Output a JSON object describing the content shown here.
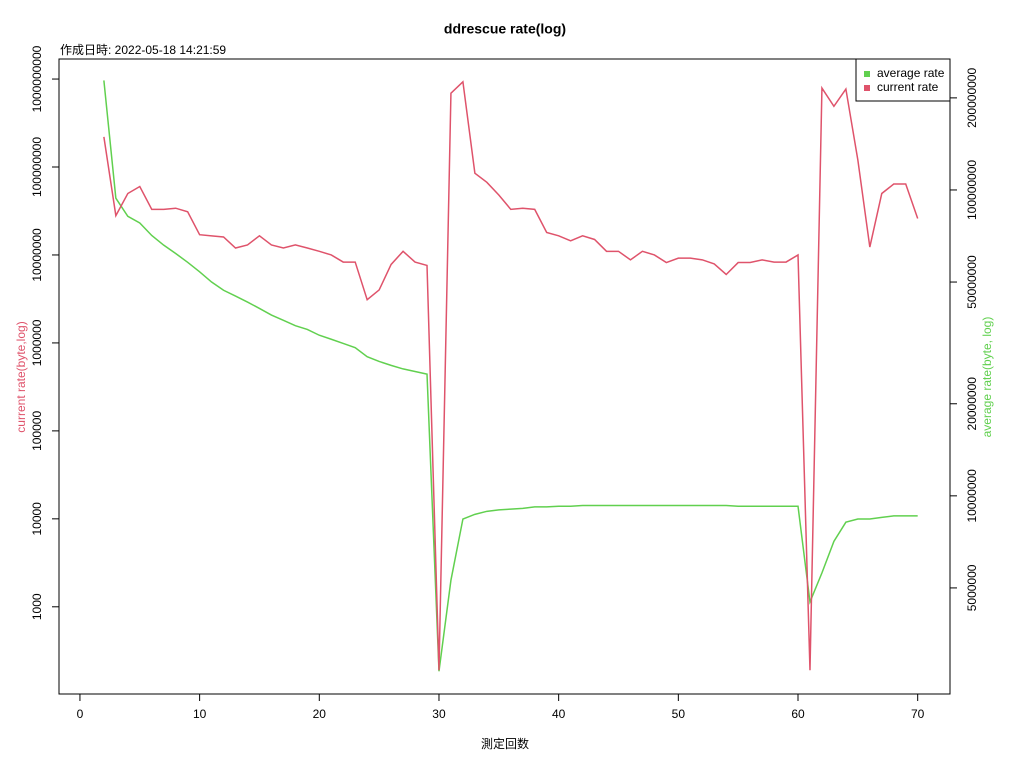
{
  "chart_data": {
    "type": "line",
    "title": "ddrescue rate(log)",
    "subtitle": "作成日時: 2022-05-18 14:21:59",
    "xlabel": "測定回数",
    "ylabel": "current rate(byte,log)",
    "y2label": "average rate(byte, log)",
    "x": [
      2,
      3,
      4,
      5,
      6,
      7,
      8,
      9,
      10,
      11,
      12,
      13,
      14,
      15,
      16,
      17,
      18,
      19,
      20,
      21,
      22,
      23,
      24,
      25,
      26,
      27,
      28,
      29,
      30,
      31,
      32,
      33,
      34,
      35,
      36,
      37,
      38,
      39,
      40,
      41,
      42,
      43,
      44,
      45,
      46,
      47,
      48,
      49,
      50,
      51,
      52,
      53,
      54,
      55,
      56,
      57,
      58,
      59,
      60,
      61,
      62,
      63,
      64,
      65,
      66,
      67,
      68,
      69,
      70
    ],
    "series": [
      {
        "name": "average rate",
        "color": "#61D04F",
        "axis": "y2",
        "values": [
          228000000,
          94000000,
          82000000,
          78000000,
          71000000,
          66000000,
          62000000,
          58000000,
          54000000,
          50000000,
          47000000,
          45000000,
          43000000,
          41000000,
          39000000,
          37500000,
          36000000,
          35000000,
          33500000,
          32500000,
          31500000,
          30500000,
          28500000,
          27500000,
          26700000,
          26000000,
          25500000,
          25000000,
          2670000,
          5300000,
          8400000,
          8700000,
          8900000,
          9000000,
          9050000,
          9100000,
          9200000,
          9200000,
          9250000,
          9250000,
          9300000,
          9300000,
          9300000,
          9300000,
          9300000,
          9300000,
          9300000,
          9300000,
          9300000,
          9300000,
          9300000,
          9300000,
          9300000,
          9250000,
          9250000,
          9250000,
          9250000,
          9250000,
          9250000,
          4500000,
          5600000,
          7100000,
          8200000,
          8400000,
          8400000,
          8500000,
          8600000,
          8600000,
          8600000
        ]
      },
      {
        "name": "current rate",
        "color": "#DF536B",
        "values": [
          220000000,
          28000000,
          50000000,
          60000000,
          33000000,
          33000000,
          34000000,
          31000000,
          17000000,
          16500000,
          16000000,
          12000000,
          13000000,
          16500000,
          13000000,
          12000000,
          13000000,
          12000000,
          11000000,
          10000000,
          8300000,
          8300000,
          3100000,
          4000000,
          7800000,
          11000000,
          8300000,
          7600000,
          190,
          690000000,
          930000000,
          85000000,
          67000000,
          48000000,
          33000000,
          34000000,
          33000000,
          18000000,
          16500000,
          14500000,
          16500000,
          15000000,
          11000000,
          11000000,
          8800000,
          11000000,
          10000000,
          8200000,
          9200000,
          9200000,
          8800000,
          7900000,
          6000000,
          8200000,
          8200000,
          8800000,
          8300000,
          8300000,
          10000000,
          190,
          790000000,
          490000000,
          770000000,
          120000000,
          12300000,
          50000000,
          64000000,
          64000000,
          26000000
        ]
      }
    ],
    "xlim": [
      -1.75,
      72.7
    ],
    "xticks": [
      0,
      10,
      20,
      30,
      40,
      50,
      60,
      70
    ],
    "ylog": true,
    "ylim": [
      102,
      1690000000
    ],
    "yticks": [
      1000,
      10000,
      100000,
      1000000,
      10000000,
      100000000,
      1000000000
    ],
    "y2log": true,
    "y2lim": [
      2250000,
      268000000
    ],
    "y2ticks": [
      5000000,
      10000000,
      20000000,
      50000000,
      100000000,
      200000000
    ],
    "legend": "top-right"
  }
}
